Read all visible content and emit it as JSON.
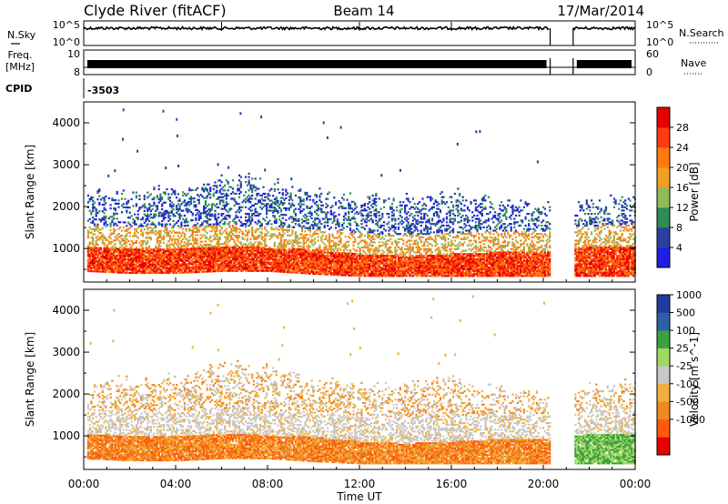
{
  "header": {
    "site": "Clyde River (fitACF)",
    "beam": "Beam 14",
    "date": "17/Mar/2014"
  },
  "strip_noise": {
    "left_label": "N.Sky",
    "left_ticks": [
      "10^5",
      "10^0"
    ],
    "right_label": "N.Search",
    "right_ticks": [
      "10^5",
      "10^0"
    ]
  },
  "strip_freq": {
    "left_label_1": "Freq.",
    "left_label_2": "[MHz]",
    "left_ticks": [
      "10",
      "8"
    ],
    "right_label": "Nave",
    "right_ticks": [
      "60",
      "0"
    ]
  },
  "strip_cpid": {
    "label": "CPID",
    "value": "-3503"
  },
  "x_axis": {
    "title": "Time UT",
    "ticks": [
      "00:00",
      "04:00",
      "08:00",
      "12:00",
      "16:00",
      "20:00",
      "00:00"
    ]
  },
  "colors": {
    "power": [
      "#1e1ee6",
      "#2840a0",
      "#2e8b57",
      "#8fbc5a",
      "#f0a020",
      "#ff7a10",
      "#ff3a10",
      "#e60000"
    ],
    "velocity": [
      "#e60000",
      "#ff5a10",
      "#f08a20",
      "#f0b040",
      "#c8c8c8",
      "#a0d860",
      "#3ca040",
      "#2e5fa8",
      "#1e3ca0"
    ],
    "trace": "#000000"
  },
  "chart_data": [
    {
      "type": "heatmap",
      "title": "",
      "xlabel": "",
      "ylabel": "Slant Range [km]",
      "x_range_hours": [
        0,
        24
      ],
      "ylim": [
        200,
        4500
      ],
      "yticks": [
        "1000",
        "2000",
        "3000",
        "4000"
      ],
      "data_gap_hours": [
        20.3,
        21.3
      ],
      "colorbar": {
        "label": "Power [dB]",
        "ticks": [
          "4",
          "8",
          "12",
          "16",
          "20",
          "24",
          "28"
        ],
        "range": [
          0,
          32
        ]
      },
      "profile": {
        "hours": [
          0,
          2,
          4,
          6,
          8,
          10,
          12,
          14,
          16,
          18,
          20,
          21.5,
          23,
          24
        ],
        "lower_edge_km": [
          450,
          400,
          400,
          450,
          450,
          380,
          330,
          330,
          330,
          330,
          330,
          330,
          330,
          330
        ],
        "core_top_km": [
          1050,
          1000,
          1000,
          1050,
          1000,
          950,
          850,
          800,
          850,
          900,
          900,
          1000,
          1050,
          1050
        ],
        "upper_edge_km": [
          2300,
          2300,
          2400,
          2700,
          2600,
          2300,
          2200,
          2200,
          2300,
          2100,
          2000,
          2100,
          2200,
          2300
        ]
      }
    },
    {
      "type": "heatmap",
      "title": "",
      "xlabel": "Time UT",
      "ylabel": "Slant Range [km]",
      "x_range_hours": [
        0,
        24
      ],
      "ylim": [
        200,
        4500
      ],
      "yticks": [
        "1000",
        "2000",
        "3000",
        "4000"
      ],
      "data_gap_hours": [
        20.3,
        21.3
      ],
      "colorbar": {
        "label": "Velocity [m s^-1]",
        "ticks": [
          "1000",
          "500",
          "100",
          "25",
          "-25",
          "-100",
          "-500",
          "-1000"
        ],
        "range": [
          -1000,
          1000
        ]
      },
      "profile": {
        "hours": [
          0,
          2,
          4,
          6,
          8,
          10,
          12,
          14,
          16,
          18,
          20,
          21.5,
          23,
          24
        ],
        "lower_edge_km": [
          450,
          400,
          400,
          450,
          450,
          380,
          330,
          330,
          330,
          330,
          330,
          330,
          330,
          330
        ],
        "core_top_km": [
          1050,
          1000,
          1000,
          1050,
          1000,
          950,
          850,
          800,
          850,
          900,
          900,
          1000,
          1050,
          1050
        ],
        "upper_edge_km": [
          2300,
          2300,
          2400,
          2700,
          2600,
          2300,
          2200,
          2200,
          2300,
          2100,
          2000,
          2100,
          2200,
          2300
        ]
      }
    }
  ]
}
